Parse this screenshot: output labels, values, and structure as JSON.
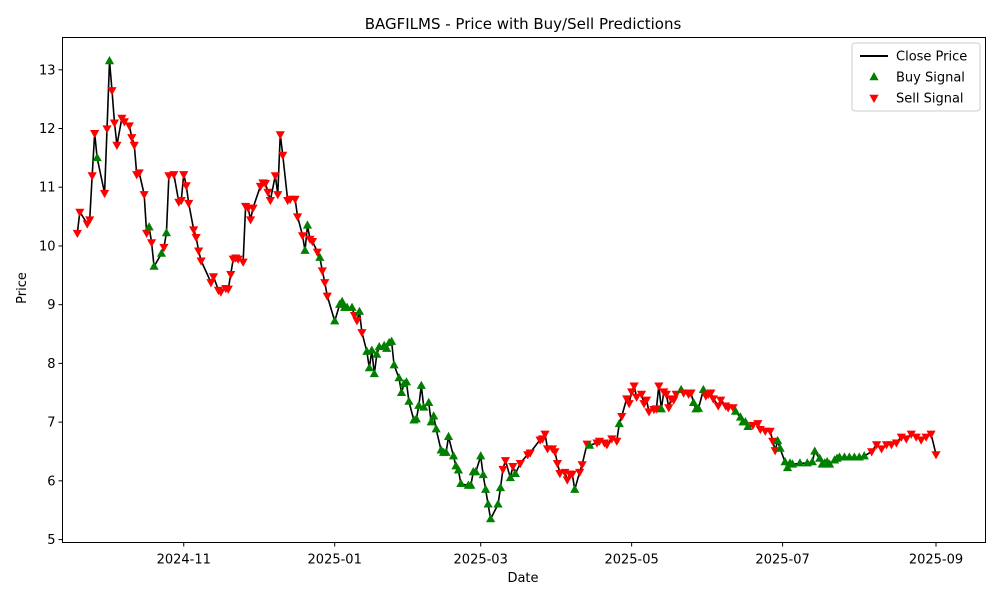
{
  "chart_data": {
    "type": "line",
    "title": "BAGFILMS - Price with Buy/Sell Predictions",
    "xlabel": "Date",
    "ylabel": "Price",
    "grid": false,
    "legend_position": "top-right",
    "xlim": [
      "2024-09-13",
      "2025-09-21"
    ],
    "ylim": [
      4.95,
      13.55
    ],
    "yticks": [
      5,
      6,
      7,
      8,
      9,
      10,
      11,
      12,
      13
    ],
    "xticks": [
      {
        "date": "2024-11-01",
        "label": "2024-11"
      },
      {
        "date": "2025-01-01",
        "label": "2025-01"
      },
      {
        "date": "2025-03-01",
        "label": "2025-03"
      },
      {
        "date": "2025-05-01",
        "label": "2025-05"
      },
      {
        "date": "2025-07-01",
        "label": "2025-07"
      },
      {
        "date": "2025-09-01",
        "label": "2025-09"
      }
    ],
    "series": [
      {
        "name": "Close Price",
        "kind": "line",
        "color": "#000000"
      },
      {
        "name": "Buy Signal",
        "kind": "marker",
        "marker": "triangle-up",
        "color": "#008000"
      },
      {
        "name": "Sell Signal",
        "kind": "marker",
        "marker": "triangle-down",
        "color": "#ff0000"
      }
    ],
    "points": [
      [
        "2024-09-19",
        10.22,
        "S"
      ],
      [
        "2024-09-20",
        10.58,
        "S"
      ],
      [
        "2024-09-23",
        10.38,
        "S"
      ],
      [
        "2024-09-24",
        10.45,
        "S"
      ],
      [
        "2024-09-25",
        11.2,
        "S"
      ],
      [
        "2024-09-26",
        11.92,
        "S"
      ],
      [
        "2024-09-27",
        11.5,
        "B"
      ],
      [
        "2024-09-30",
        10.9,
        "S"
      ],
      [
        "2024-10-01",
        12.0,
        "S"
      ],
      [
        "2024-10-02",
        13.15,
        "B"
      ],
      [
        "2024-10-03",
        12.65,
        "S"
      ],
      [
        "2024-10-04",
        12.1,
        "S"
      ],
      [
        "2024-10-05",
        11.72,
        "S"
      ],
      [
        "2024-10-07",
        12.18,
        "S"
      ],
      [
        "2024-10-08",
        12.12,
        "S"
      ],
      [
        "2024-10-10",
        12.05,
        "S"
      ],
      [
        "2024-10-11",
        11.85,
        "S"
      ],
      [
        "2024-10-12",
        11.72,
        "S"
      ],
      [
        "2024-10-13",
        11.22,
        "S"
      ],
      [
        "2024-10-14",
        11.25,
        "S"
      ],
      [
        "2024-10-16",
        10.88,
        "S"
      ],
      [
        "2024-10-17",
        10.22,
        "S"
      ],
      [
        "2024-10-18",
        10.32,
        "B"
      ],
      [
        "2024-10-19",
        10.06,
        "S"
      ],
      [
        "2024-10-20",
        9.65,
        "B"
      ],
      [
        "2024-10-23",
        9.87,
        "B"
      ],
      [
        "2024-10-24",
        9.98,
        "S"
      ],
      [
        "2024-10-25",
        10.22,
        "B"
      ],
      [
        "2024-10-26",
        11.2,
        "S"
      ],
      [
        "2024-10-28",
        11.22,
        "S"
      ],
      [
        "2024-10-30",
        10.75,
        "S"
      ],
      [
        "2024-10-31",
        10.78,
        "S"
      ],
      [
        "2024-11-01",
        11.22,
        "S"
      ],
      [
        "2024-11-02",
        11.03,
        "S"
      ],
      [
        "2024-11-03",
        10.73,
        "S"
      ],
      [
        "2024-11-05",
        10.28,
        "S"
      ],
      [
        "2024-11-06",
        10.15,
        "S"
      ],
      [
        "2024-11-07",
        9.92,
        "S"
      ],
      [
        "2024-11-08",
        9.75,
        "S"
      ],
      [
        "2024-11-12",
        9.38,
        "S"
      ],
      [
        "2024-11-13",
        9.48,
        "S"
      ],
      [
        "2024-11-15",
        9.25,
        "S"
      ],
      [
        "2024-11-16",
        9.22,
        "S"
      ],
      [
        "2024-11-18",
        9.28,
        "S"
      ],
      [
        "2024-11-19",
        9.27,
        "S"
      ],
      [
        "2024-11-20",
        9.52,
        "S"
      ],
      [
        "2024-11-21",
        9.78,
        "S"
      ],
      [
        "2024-11-22",
        9.8,
        "S"
      ],
      [
        "2024-11-23",
        9.78,
        "S"
      ],
      [
        "2024-11-25",
        9.73,
        "S"
      ],
      [
        "2024-11-26",
        10.68,
        "S"
      ],
      [
        "2024-11-27",
        10.65,
        "S"
      ],
      [
        "2024-11-28",
        10.45,
        "S"
      ],
      [
        "2024-11-29",
        10.65,
        "S"
      ],
      [
        "2024-12-02",
        11.02,
        "S"
      ],
      [
        "2024-12-03",
        11.08,
        "S"
      ],
      [
        "2024-12-04",
        11.07,
        "S"
      ],
      [
        "2024-12-05",
        10.92,
        "S"
      ],
      [
        "2024-12-06",
        10.78,
        "S"
      ],
      [
        "2024-12-08",
        11.2,
        "S"
      ],
      [
        "2024-12-09",
        10.88,
        "S"
      ],
      [
        "2024-12-10",
        11.9,
        "S"
      ],
      [
        "2024-12-11",
        11.55,
        "S"
      ],
      [
        "2024-12-13",
        10.78,
        "S"
      ],
      [
        "2024-12-14",
        10.8,
        "S"
      ],
      [
        "2024-12-16",
        10.8,
        "S"
      ],
      [
        "2024-12-17",
        10.5,
        "S"
      ],
      [
        "2024-12-19",
        10.18,
        "S"
      ],
      [
        "2024-12-20",
        9.92,
        "B"
      ],
      [
        "2024-12-21",
        10.35,
        "B"
      ],
      [
        "2024-12-22",
        10.12,
        "S"
      ],
      [
        "2024-12-23",
        10.08,
        "S"
      ],
      [
        "2024-12-25",
        9.9,
        "S"
      ],
      [
        "2024-12-26",
        9.8,
        "B"
      ],
      [
        "2024-12-27",
        9.58,
        "S"
      ],
      [
        "2024-12-28",
        9.38,
        "S"
      ],
      [
        "2024-12-29",
        9.15,
        "S"
      ],
      [
        "2025-01-01",
        8.72,
        "B"
      ],
      [
        "2025-01-03",
        9.0,
        "B"
      ],
      [
        "2025-01-04",
        9.05,
        "B"
      ],
      [
        "2025-01-05",
        8.95,
        "B"
      ],
      [
        "2025-01-06",
        8.95,
        "B"
      ],
      [
        "2025-01-08",
        8.95,
        "B"
      ],
      [
        "2025-01-09",
        8.82,
        "S"
      ],
      [
        "2025-01-10",
        8.73,
        "S"
      ],
      [
        "2025-01-11",
        8.88,
        "B"
      ],
      [
        "2025-01-12",
        8.53,
        "S"
      ],
      [
        "2025-01-14",
        8.2,
        "B"
      ],
      [
        "2025-01-15",
        7.92,
        "B"
      ],
      [
        "2025-01-16",
        8.22,
        "B"
      ],
      [
        "2025-01-17",
        7.82,
        "B"
      ],
      [
        "2025-01-18",
        8.15,
        "B"
      ],
      [
        "2025-01-19",
        8.28,
        "B"
      ],
      [
        "2025-01-21",
        8.3,
        "B"
      ],
      [
        "2025-01-22",
        8.25,
        "B"
      ],
      [
        "2025-01-23",
        8.35,
        "B"
      ],
      [
        "2025-01-24",
        8.37,
        "B"
      ],
      [
        "2025-01-25",
        7.97,
        "B"
      ],
      [
        "2025-01-27",
        7.75,
        "B"
      ],
      [
        "2025-01-28",
        7.5,
        "B"
      ],
      [
        "2025-01-29",
        7.65,
        "B"
      ],
      [
        "2025-01-30",
        7.68,
        "B"
      ],
      [
        "2025-01-31",
        7.35,
        "B"
      ],
      [
        "2025-02-02",
        7.03,
        "B"
      ],
      [
        "2025-02-03",
        7.05,
        "B"
      ],
      [
        "2025-02-04",
        7.28,
        "B"
      ],
      [
        "2025-02-05",
        7.62,
        "B"
      ],
      [
        "2025-02-06",
        7.25,
        "B"
      ],
      [
        "2025-02-08",
        7.33,
        "B"
      ],
      [
        "2025-02-09",
        7.0,
        "B"
      ],
      [
        "2025-02-10",
        7.1,
        "B"
      ],
      [
        "2025-02-11",
        6.88,
        "B"
      ],
      [
        "2025-02-13",
        6.52,
        "B"
      ],
      [
        "2025-02-14",
        6.48,
        "B"
      ],
      [
        "2025-02-15",
        6.48,
        "B"
      ],
      [
        "2025-02-16",
        6.75,
        "B"
      ],
      [
        "2025-02-18",
        6.42,
        "B"
      ],
      [
        "2025-02-19",
        6.25,
        "B"
      ],
      [
        "2025-02-20",
        6.18,
        "B"
      ],
      [
        "2025-02-21",
        5.95,
        "B"
      ],
      [
        "2025-02-24",
        5.92,
        "B"
      ],
      [
        "2025-02-25",
        5.92,
        "B"
      ],
      [
        "2025-02-26",
        6.15,
        "B"
      ],
      [
        "2025-02-27",
        6.15,
        "B"
      ],
      [
        "2025-03-01",
        6.42,
        "B"
      ],
      [
        "2025-03-02",
        6.1,
        "B"
      ],
      [
        "2025-03-03",
        5.85,
        "B"
      ],
      [
        "2025-03-04",
        5.6,
        "B"
      ],
      [
        "2025-03-05",
        5.35,
        "B"
      ],
      [
        "2025-03-08",
        5.6,
        "B"
      ],
      [
        "2025-03-09",
        5.88,
        "B"
      ],
      [
        "2025-03-10",
        6.2,
        "S"
      ],
      [
        "2025-03-11",
        6.35,
        "S"
      ],
      [
        "2025-03-13",
        6.05,
        "B"
      ],
      [
        "2025-03-14",
        6.25,
        "S"
      ],
      [
        "2025-03-15",
        6.12,
        "B"
      ],
      [
        "2025-03-17",
        6.3,
        "S"
      ],
      [
        "2025-03-20",
        6.45,
        "S"
      ],
      [
        "2025-03-21",
        6.48,
        "S"
      ],
      [
        "2025-03-25",
        6.7,
        "S"
      ],
      [
        "2025-03-26",
        6.72,
        "S"
      ],
      [
        "2025-03-27",
        6.8,
        "S"
      ],
      [
        "2025-03-28",
        6.55,
        "S"
      ],
      [
        "2025-03-30",
        6.55,
        "S"
      ],
      [
        "2025-03-31",
        6.5,
        "S"
      ],
      [
        "2025-04-01",
        6.3,
        "S"
      ],
      [
        "2025-04-02",
        6.13,
        "S"
      ],
      [
        "2025-04-04",
        6.15,
        "S"
      ],
      [
        "2025-04-05",
        6.02,
        "S"
      ],
      [
        "2025-04-06",
        6.12,
        "S"
      ],
      [
        "2025-04-07",
        6.12,
        "S"
      ],
      [
        "2025-04-08",
        5.85,
        "B"
      ],
      [
        "2025-04-10",
        6.15,
        "S"
      ],
      [
        "2025-04-11",
        6.28,
        "S"
      ],
      [
        "2025-04-13",
        6.63,
        "S"
      ],
      [
        "2025-04-14",
        6.6,
        "B"
      ],
      [
        "2025-04-17",
        6.65,
        "S"
      ],
      [
        "2025-04-18",
        6.68,
        "S"
      ],
      [
        "2025-04-20",
        6.65,
        "S"
      ],
      [
        "2025-04-21",
        6.62,
        "S"
      ],
      [
        "2025-04-23",
        6.72,
        "S"
      ],
      [
        "2025-04-25",
        6.68,
        "S"
      ],
      [
        "2025-04-26",
        6.97,
        "B"
      ],
      [
        "2025-04-27",
        7.1,
        "S"
      ],
      [
        "2025-04-29",
        7.4,
        "S"
      ],
      [
        "2025-04-30",
        7.32,
        "S"
      ],
      [
        "2025-05-01",
        7.52,
        "S"
      ],
      [
        "2025-05-02",
        7.62,
        "S"
      ],
      [
        "2025-05-03",
        7.43,
        "S"
      ],
      [
        "2025-05-05",
        7.48,
        "S"
      ],
      [
        "2025-05-06",
        7.32,
        "S"
      ],
      [
        "2025-05-07",
        7.38,
        "S"
      ],
      [
        "2025-05-08",
        7.18,
        "S"
      ],
      [
        "2025-05-10",
        7.22,
        "S"
      ],
      [
        "2025-05-11",
        7.23,
        "S"
      ],
      [
        "2025-05-12",
        7.62,
        "S"
      ],
      [
        "2025-05-13",
        7.22,
        "B"
      ],
      [
        "2025-05-14",
        7.52,
        "S"
      ],
      [
        "2025-05-15",
        7.48,
        "S"
      ],
      [
        "2025-05-16",
        7.25,
        "S"
      ],
      [
        "2025-05-17",
        7.4,
        "S"
      ],
      [
        "2025-05-18",
        7.38,
        "S"
      ],
      [
        "2025-05-19",
        7.48,
        "S"
      ],
      [
        "2025-05-21",
        7.55,
        "B"
      ],
      [
        "2025-05-22",
        7.5,
        "S"
      ],
      [
        "2025-05-24",
        7.48,
        "S"
      ],
      [
        "2025-05-25",
        7.5,
        "S"
      ],
      [
        "2025-05-26",
        7.33,
        "B"
      ],
      [
        "2025-05-27",
        7.22,
        "B"
      ],
      [
        "2025-05-28",
        7.23,
        "B"
      ],
      [
        "2025-05-30",
        7.55,
        "B"
      ],
      [
        "2025-05-31",
        7.45,
        "S"
      ],
      [
        "2025-06-01",
        7.48,
        "S"
      ],
      [
        "2025-06-02",
        7.5,
        "S"
      ],
      [
        "2025-06-03",
        7.4,
        "S"
      ],
      [
        "2025-06-05",
        7.28,
        "S"
      ],
      [
        "2025-06-06",
        7.38,
        "S"
      ],
      [
        "2025-06-08",
        7.28,
        "S"
      ],
      [
        "2025-06-09",
        7.25,
        "S"
      ],
      [
        "2025-06-11",
        7.25,
        "S"
      ],
      [
        "2025-06-12",
        7.18,
        "B"
      ],
      [
        "2025-06-14",
        7.08,
        "B"
      ],
      [
        "2025-06-15",
        7.0,
        "B"
      ],
      [
        "2025-06-16",
        7.0,
        "B"
      ],
      [
        "2025-06-17",
        6.92,
        "B"
      ],
      [
        "2025-06-19",
        6.95,
        "S"
      ],
      [
        "2025-06-21",
        6.98,
        "S"
      ],
      [
        "2025-06-22",
        6.88,
        "S"
      ],
      [
        "2025-06-24",
        6.85,
        "S"
      ],
      [
        "2025-06-26",
        6.85,
        "S"
      ],
      [
        "2025-06-27",
        6.68,
        "S"
      ],
      [
        "2025-06-28",
        6.52,
        "S"
      ],
      [
        "2025-06-29",
        6.68,
        "B"
      ],
      [
        "2025-06-30",
        6.55,
        "B"
      ],
      [
        "2025-07-02",
        6.32,
        "B"
      ],
      [
        "2025-07-03",
        6.22,
        "B"
      ],
      [
        "2025-07-04",
        6.3,
        "B"
      ],
      [
        "2025-07-05",
        6.28,
        "B"
      ],
      [
        "2025-07-08",
        6.3,
        "B"
      ],
      [
        "2025-07-11",
        6.3,
        "B"
      ],
      [
        "2025-07-13",
        6.32,
        "B"
      ],
      [
        "2025-07-14",
        6.5,
        "B"
      ],
      [
        "2025-07-16",
        6.38,
        "B"
      ],
      [
        "2025-07-17",
        6.28,
        "B"
      ],
      [
        "2025-07-18",
        6.3,
        "B"
      ],
      [
        "2025-07-19",
        6.32,
        "B"
      ],
      [
        "2025-07-20",
        6.28,
        "B"
      ],
      [
        "2025-07-22",
        6.35,
        "B"
      ],
      [
        "2025-07-23",
        6.38,
        "B"
      ],
      [
        "2025-07-24",
        6.4,
        "B"
      ],
      [
        "2025-07-26",
        6.4,
        "B"
      ],
      [
        "2025-07-28",
        6.4,
        "B"
      ],
      [
        "2025-07-30",
        6.4,
        "B"
      ],
      [
        "2025-08-01",
        6.4,
        "B"
      ],
      [
        "2025-08-03",
        6.42,
        "B"
      ],
      [
        "2025-08-06",
        6.5,
        "S"
      ],
      [
        "2025-08-08",
        6.62,
        "S"
      ],
      [
        "2025-08-10",
        6.55,
        "S"
      ],
      [
        "2025-08-12",
        6.62,
        "S"
      ],
      [
        "2025-08-14",
        6.62,
        "S"
      ],
      [
        "2025-08-16",
        6.65,
        "S"
      ],
      [
        "2025-08-18",
        6.75,
        "S"
      ],
      [
        "2025-08-20",
        6.72,
        "S"
      ],
      [
        "2025-08-22",
        6.8,
        "S"
      ],
      [
        "2025-08-24",
        6.75,
        "S"
      ],
      [
        "2025-08-26",
        6.7,
        "S"
      ],
      [
        "2025-08-28",
        6.75,
        "S"
      ],
      [
        "2025-08-30",
        6.8,
        "S"
      ],
      [
        "2025-09-01",
        6.45,
        "S"
      ]
    ]
  }
}
